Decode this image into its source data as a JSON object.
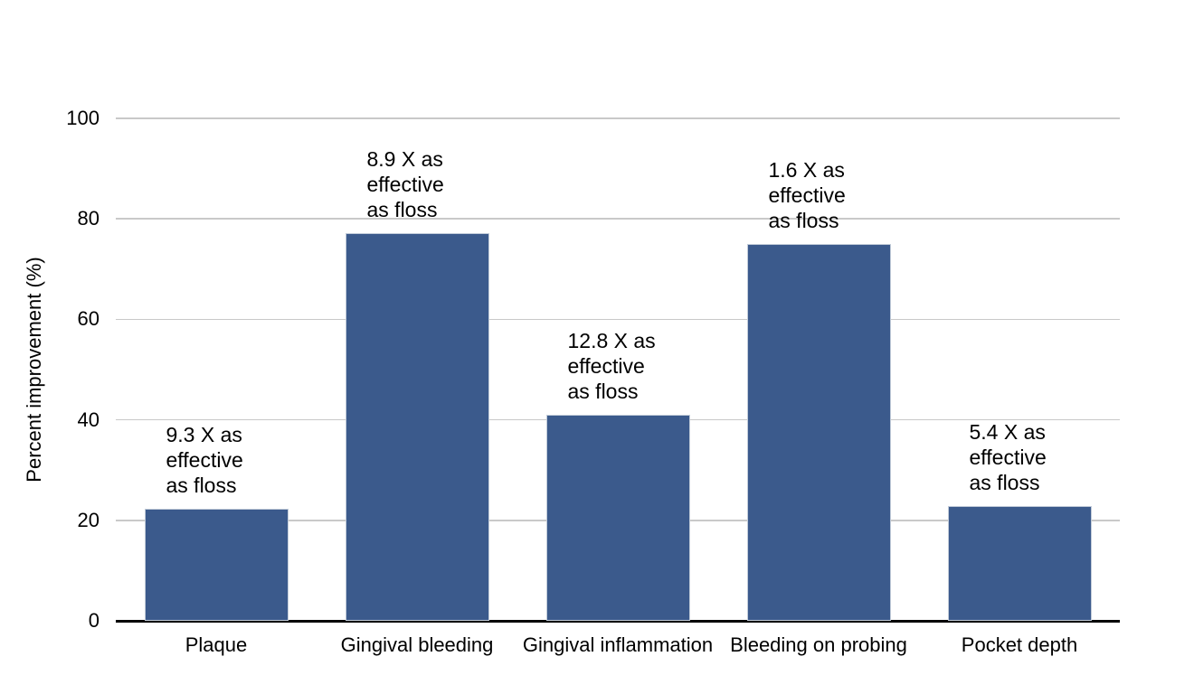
{
  "chart_data": {
    "type": "bar",
    "title": "",
    "xlabel": "",
    "ylabel": "Percent improvement (%)",
    "categories": [
      "Plaque",
      "Gingival bleeding",
      "Gingival inflammation",
      "Bleeding on probing",
      "Pocket depth"
    ],
    "values": [
      22.3,
      77.2,
      41.0,
      75.0,
      22.9
    ],
    "yticks": [
      0,
      20,
      40,
      60,
      80,
      100
    ],
    "ylim": [
      0,
      100
    ],
    "grid": true,
    "legend": "none",
    "annotations": [
      {
        "multiplier": 9.3,
        "lines": [
          "9.3 X as",
          "effective",
          "as floss"
        ]
      },
      {
        "multiplier": 8.9,
        "lines": [
          "8.9 X as",
          "effective",
          "as floss"
        ]
      },
      {
        "multiplier": 12.8,
        "lines": [
          "12.8 X as",
          "effective",
          "as floss"
        ]
      },
      {
        "multiplier": 1.6,
        "lines": [
          "1.6 X as",
          "effective",
          "as floss"
        ]
      },
      {
        "multiplier": 5.4,
        "lines": [
          "5.4 X as",
          "effective",
          "as floss"
        ]
      }
    ],
    "colors": {
      "bar_fill": "#3B5A8C",
      "bar_border": "#c2ccd9",
      "gridline": "#c9c9c9",
      "axis_line": "#000000",
      "text": "#000000",
      "background": "#ffffff"
    }
  }
}
